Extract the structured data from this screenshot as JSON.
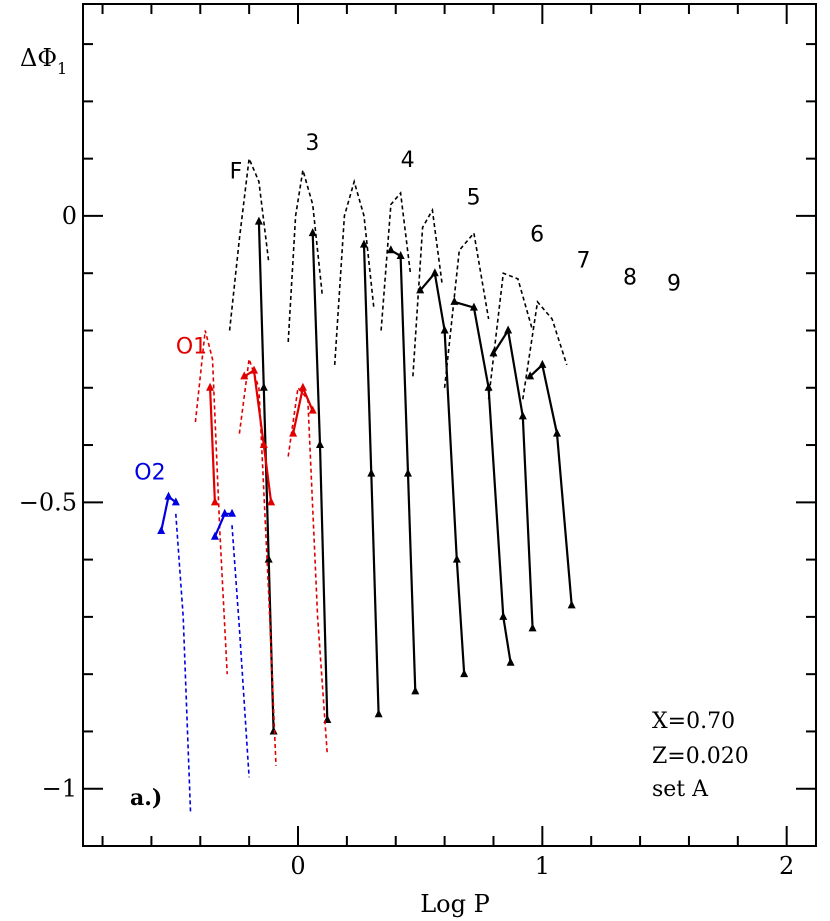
{
  "chart_data": {
    "type": "line",
    "title": "",
    "xlabel": "Log P",
    "ylabel_main": "ΔΦ",
    "ylabel_sub": "1",
    "xlim": [
      -0.88,
      2.12
    ],
    "ylim": [
      -1.1,
      0.37
    ],
    "x_ticks": [
      {
        "value": 0,
        "label": "0"
      },
      {
        "value": 1,
        "label": "1"
      },
      {
        "value": 2,
        "label": "2"
      }
    ],
    "y_ticks": [
      {
        "value": 0,
        "label": "0"
      },
      {
        "value": -0.5,
        "label": "−0.5"
      },
      {
        "value": -1,
        "label": "−1"
      }
    ],
    "panel_label": "a.)",
    "info_lines": [
      "X=0.70",
      "Z=0.020",
      "set A"
    ],
    "mode_labels": [
      {
        "text": "F",
        "x": -0.28,
        "y": 0.065,
        "color": "#000000"
      },
      {
        "text": "3",
        "x": 0.03,
        "y": 0.115,
        "color": "#000000"
      },
      {
        "text": "4",
        "x": 0.42,
        "y": 0.085,
        "color": "#000000"
      },
      {
        "text": "5",
        "x": 0.69,
        "y": 0.02,
        "color": "#000000"
      },
      {
        "text": "6",
        "x": 0.95,
        "y": -0.045,
        "color": "#000000"
      },
      {
        "text": "7",
        "x": 1.14,
        "y": -0.09,
        "color": "#000000"
      },
      {
        "text": "8",
        "x": 1.33,
        "y": -0.12,
        "color": "#000000"
      },
      {
        "text": "9",
        "x": 1.51,
        "y": -0.13,
        "color": "#000000"
      },
      {
        "text": "O1",
        "x": -0.5,
        "y": -0.24,
        "color": "#e00000"
      },
      {
        "text": "O2",
        "x": -0.67,
        "y": -0.46,
        "color": "#0000e0"
      }
    ],
    "series": [
      {
        "name": "F",
        "color": "#000000",
        "dashed_points": [
          [
            -0.28,
            -0.2
          ],
          [
            -0.24,
            -0.04
          ],
          [
            -0.2,
            0.1
          ],
          [
            -0.16,
            0.06
          ],
          [
            -0.12,
            -0.08
          ]
        ],
        "solid_points": [
          [
            -0.16,
            -0.01
          ],
          [
            -0.14,
            -0.3
          ],
          [
            -0.12,
            -0.6
          ],
          [
            -0.1,
            -0.9
          ]
        ]
      },
      {
        "name": "3",
        "color": "#000000",
        "dashed_points": [
          [
            -0.04,
            -0.22
          ],
          [
            -0.01,
            0.0
          ],
          [
            0.02,
            0.08
          ],
          [
            0.06,
            0.02
          ],
          [
            0.1,
            -0.14
          ]
        ],
        "solid_points": [
          [
            0.06,
            -0.03
          ],
          [
            0.09,
            -0.4
          ],
          [
            0.12,
            -0.88
          ]
        ]
      },
      {
        "name": "4",
        "color": "#000000",
        "dashed_points": [
          [
            0.15,
            -0.26
          ],
          [
            0.19,
            0.0
          ],
          [
            0.23,
            0.06
          ],
          [
            0.27,
            0.0
          ],
          [
            0.31,
            -0.16
          ]
        ],
        "solid_points": [
          [
            0.27,
            -0.05
          ],
          [
            0.3,
            -0.45
          ],
          [
            0.33,
            -0.87
          ]
        ]
      },
      {
        "name": "5",
        "color": "#000000",
        "solid_points": [
          [
            0.38,
            -0.06
          ],
          [
            0.42,
            -0.07
          ],
          [
            0.45,
            -0.45
          ],
          [
            0.48,
            -0.83
          ]
        ],
        "dashed_points": [
          [
            0.34,
            -0.2
          ],
          [
            0.38,
            0.02
          ],
          [
            0.42,
            0.04
          ],
          [
            0.46,
            -0.1
          ]
        ]
      },
      {
        "name": "6",
        "color": "#000000",
        "solid_points": [
          [
            0.5,
            -0.13
          ],
          [
            0.56,
            -0.1
          ],
          [
            0.6,
            -0.2
          ],
          [
            0.65,
            -0.6
          ],
          [
            0.68,
            -0.8
          ]
        ],
        "dashed_points": [
          [
            0.47,
            -0.28
          ],
          [
            0.51,
            -0.02
          ],
          [
            0.55,
            0.01
          ],
          [
            0.59,
            -0.12
          ]
        ]
      },
      {
        "name": "7",
        "color": "#000000",
        "solid_points": [
          [
            0.64,
            -0.15
          ],
          [
            0.72,
            -0.16
          ],
          [
            0.78,
            -0.3
          ],
          [
            0.84,
            -0.7
          ],
          [
            0.87,
            -0.78
          ]
        ],
        "dashed_points": [
          [
            0.6,
            -0.3
          ],
          [
            0.66,
            -0.06
          ],
          [
            0.72,
            -0.03
          ],
          [
            0.78,
            -0.18
          ]
        ]
      },
      {
        "name": "8",
        "color": "#000000",
        "solid_points": [
          [
            0.8,
            -0.24
          ],
          [
            0.86,
            -0.2
          ],
          [
            0.92,
            -0.35
          ],
          [
            0.96,
            -0.72
          ]
        ],
        "dashed_points": [
          [
            0.78,
            -0.32
          ],
          [
            0.84,
            -0.1
          ],
          [
            0.9,
            -0.11
          ],
          [
            0.96,
            -0.2
          ]
        ]
      },
      {
        "name": "9",
        "color": "#000000",
        "solid_points": [
          [
            0.95,
            -0.28
          ],
          [
            1.0,
            -0.26
          ],
          [
            1.06,
            -0.38
          ],
          [
            1.12,
            -0.68
          ]
        ],
        "dashed_points": [
          [
            0.92,
            -0.32
          ],
          [
            0.98,
            -0.15
          ],
          [
            1.04,
            -0.18
          ],
          [
            1.1,
            -0.26
          ]
        ]
      },
      {
        "name": "O1-a",
        "color": "#e00000",
        "dashed_points": [
          [
            -0.42,
            -0.36
          ],
          [
            -0.38,
            -0.2
          ],
          [
            -0.35,
            -0.25
          ],
          [
            -0.32,
            -0.55
          ],
          [
            -0.29,
            -0.8
          ]
        ],
        "solid_points": [
          [
            -0.36,
            -0.3
          ],
          [
            -0.34,
            -0.5
          ]
        ]
      },
      {
        "name": "O1-b",
        "color": "#e00000",
        "dashed_points": [
          [
            -0.24,
            -0.38
          ],
          [
            -0.2,
            -0.25
          ],
          [
            -0.16,
            -0.3
          ],
          [
            -0.12,
            -0.66
          ],
          [
            -0.09,
            -0.96
          ]
        ],
        "solid_points": [
          [
            -0.22,
            -0.28
          ],
          [
            -0.18,
            -0.27
          ],
          [
            -0.14,
            -0.4
          ],
          [
            -0.11,
            -0.5
          ]
        ]
      },
      {
        "name": "O1-c",
        "color": "#e00000",
        "dashed_points": [
          [
            -0.04,
            -0.42
          ],
          [
            0.0,
            -0.3
          ],
          [
            0.04,
            -0.32
          ],
          [
            0.08,
            -0.7
          ],
          [
            0.12,
            -0.94
          ]
        ],
        "solid_points": [
          [
            -0.02,
            -0.38
          ],
          [
            0.02,
            -0.3
          ],
          [
            0.06,
            -0.34
          ]
        ]
      },
      {
        "name": "O2-a",
        "color": "#0000e0",
        "solid_points": [
          [
            -0.56,
            -0.55
          ],
          [
            -0.53,
            -0.49
          ],
          [
            -0.5,
            -0.5
          ]
        ],
        "dashed_points": [
          [
            -0.5,
            -0.52
          ],
          [
            -0.47,
            -0.7
          ],
          [
            -0.44,
            -1.04
          ]
        ]
      },
      {
        "name": "O2-b",
        "color": "#0000e0",
        "solid_points": [
          [
            -0.34,
            -0.56
          ],
          [
            -0.3,
            -0.52
          ],
          [
            -0.27,
            -0.52
          ]
        ],
        "dashed_points": [
          [
            -0.27,
            -0.54
          ],
          [
            -0.24,
            -0.72
          ],
          [
            -0.2,
            -0.98
          ]
        ]
      }
    ]
  }
}
